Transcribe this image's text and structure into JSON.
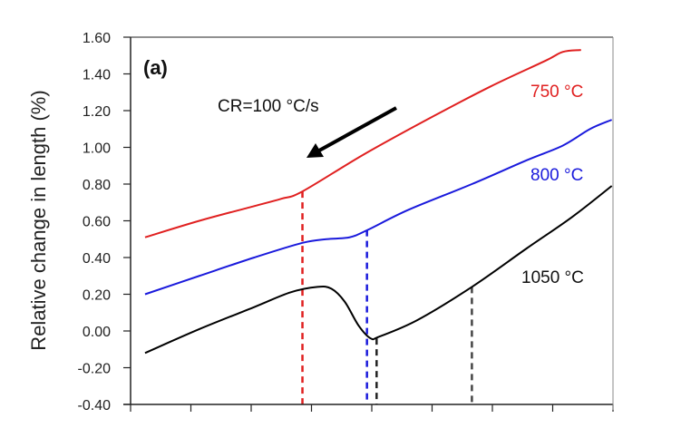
{
  "chart_data": {
    "type": "line",
    "title": "",
    "panel_label": "(a)",
    "xlabel": "",
    "ylabel": "Relative change in length (%)",
    "xlim": [
      0,
      8
    ],
    "ylim": [
      -0.4,
      1.6
    ],
    "x_tick_count": 9,
    "yticks": [
      "-0.40",
      "-0.20",
      "0.00",
      "0.20",
      "0.40",
      "0.60",
      "0.80",
      "1.00",
      "1.20",
      "1.40",
      "1.60"
    ],
    "grid": false,
    "annotation": "CR=100 °C/s",
    "series": [
      {
        "name": "750 °C",
        "color": "#e02020",
        "x": [
          0.24,
          1.14,
          2.05,
          2.5,
          2.85,
          3.86,
          4.91,
          5.96,
          6.87,
          7.17,
          7.47
        ],
        "y": [
          0.51,
          0.6,
          0.68,
          0.72,
          0.76,
          0.96,
          1.15,
          1.33,
          1.47,
          1.52,
          1.53
        ]
      },
      {
        "name": "800 °C",
        "color": "#1a1adc",
        "x": [
          0.24,
          1.14,
          2.05,
          2.85,
          3.25,
          3.63,
          3.93,
          4.61,
          5.66,
          6.57,
          7.17,
          7.62,
          7.98
        ],
        "y": [
          0.2,
          0.3,
          0.4,
          0.48,
          0.5,
          0.51,
          0.55,
          0.66,
          0.8,
          0.93,
          1.01,
          1.1,
          1.15
        ]
      },
      {
        "name": "1050 °C",
        "color": "#000000",
        "x": [
          0.24,
          1.14,
          2.05,
          2.65,
          3.1,
          3.33,
          3.55,
          3.78,
          3.98,
          4.13,
          4.76,
          5.66,
          6.57,
          7.32,
          7.98
        ],
        "y": [
          -0.12,
          0.01,
          0.13,
          0.21,
          0.24,
          0.23,
          0.16,
          0.03,
          -0.04,
          -0.03,
          0.06,
          0.24,
          0.45,
          0.62,
          0.79
        ]
      }
    ],
    "dashed_markers": [
      {
        "x": 2.85,
        "y": 0.76,
        "color": "#e02020"
      },
      {
        "x": 3.92,
        "y": 0.55,
        "color": "#1a1adc"
      },
      {
        "x": 4.08,
        "y": -0.04,
        "color": "#222222"
      },
      {
        "x": 5.66,
        "y": 0.24,
        "color": "#444444"
      }
    ]
  }
}
